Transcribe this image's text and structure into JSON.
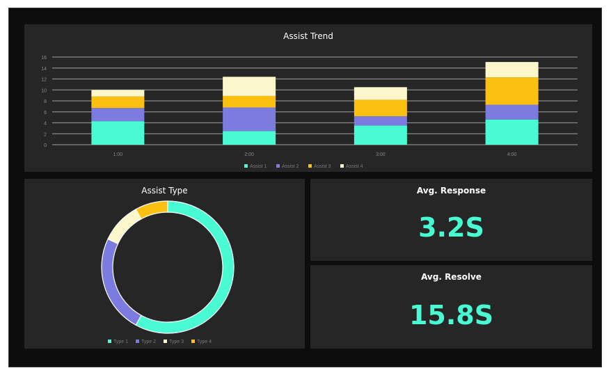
{
  "chart_data": [
    {
      "type": "bar",
      "stacked": true,
      "title": "Assist Trend",
      "categories": [
        "1:00",
        "2:00",
        "3:00",
        "4:00"
      ],
      "series": [
        {
          "name": "Assist 1",
          "color": "#49fbd3",
          "values": [
            4.3,
            2.5,
            3.5,
            4.6
          ]
        },
        {
          "name": "Assist 2",
          "color": "#7b7be0",
          "values": [
            2.4,
            4.3,
            1.7,
            2.7
          ]
        },
        {
          "name": "Assist 3",
          "color": "#fcc010",
          "values": [
            2.1,
            2.1,
            3.0,
            5.0
          ]
        },
        {
          "name": "Assist 4",
          "color": "#fbf7cb",
          "values": [
            1.2,
            3.5,
            2.3,
            2.8
          ]
        }
      ],
      "yticks": [
        "0",
        "2",
        "4",
        "6",
        "8",
        "10",
        "12",
        "14",
        "16"
      ],
      "ylim": [
        0,
        16
      ],
      "grid": true,
      "legend": "bottom"
    },
    {
      "type": "pie",
      "donut": true,
      "title": "Assist Type",
      "slices": [
        {
          "name": "Type 1",
          "value": 58,
          "color": "#49fbd3"
        },
        {
          "name": "Type 2",
          "value": 24,
          "color": "#7b7be0"
        },
        {
          "name": "Type 3",
          "value": 10,
          "color": "#fbf7cb"
        },
        {
          "name": "Type 4",
          "value": 8,
          "color": "#fcc010"
        }
      ],
      "legend": "bottom"
    }
  ],
  "kpis": {
    "response": {
      "label": "Avg. Response",
      "value": "3.2S"
    },
    "resolve": {
      "label": "Avg. Resolve",
      "value": "15.8S"
    }
  }
}
